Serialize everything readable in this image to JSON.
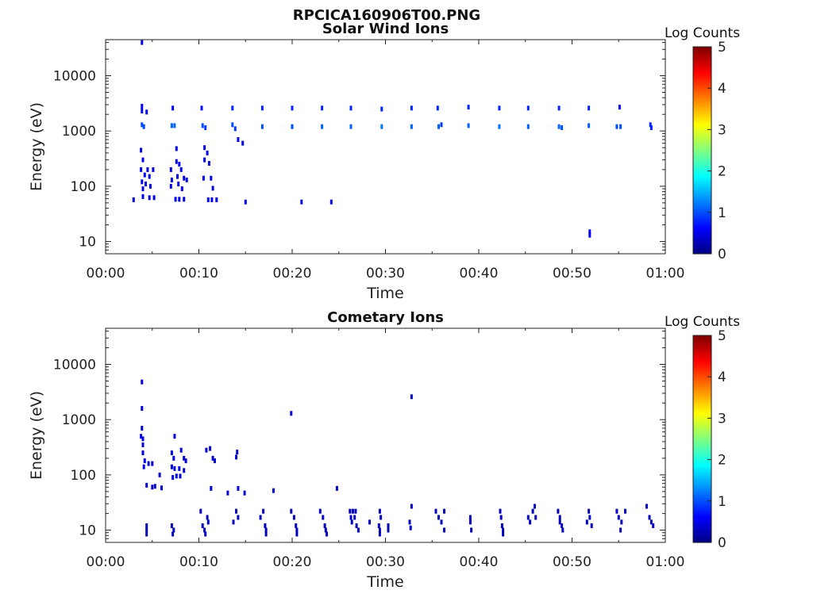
{
  "figure_title": "RPCICA160906T00.PNG",
  "chart_data": [
    {
      "type": "heatmap",
      "title": "Solar Wind Ions",
      "xlabel": "Time",
      "ylabel": "Energy (eV)",
      "x_ticks": [
        "00:00",
        "00:10",
        "00:20",
        "00:30",
        "00:40",
        "00:50",
        "01:00"
      ],
      "xlim_minutes": [
        0,
        60
      ],
      "y_ticks": [
        "10",
        "100",
        "1000",
        "10000"
      ],
      "y_scale": "log",
      "ylim": [
        6,
        45000
      ],
      "colorbar": {
        "label": "Log Counts",
        "min": 0,
        "max": 5,
        "ticks": [
          "0",
          "1",
          "2",
          "3",
          "4",
          "5"
        ]
      },
      "points": [
        {
          "t": 3.9,
          "e": 40000,
          "v": 0.5
        },
        {
          "t": 3.9,
          "e": 2800,
          "v": 0.6
        },
        {
          "t": 3.9,
          "e": 2300,
          "v": 0.6
        },
        {
          "t": 3.9,
          "e": 1300,
          "v": 1.0
        },
        {
          "t": 4.1,
          "e": 1200,
          "v": 1.0
        },
        {
          "t": 3.8,
          "e": 450,
          "v": 0.5
        },
        {
          "t": 4.0,
          "e": 300,
          "v": 0.6
        },
        {
          "t": 3.8,
          "e": 200,
          "v": 0.6
        },
        {
          "t": 4.2,
          "e": 160,
          "v": 0.6
        },
        {
          "t": 3.9,
          "e": 120,
          "v": 0.6
        },
        {
          "t": 4.3,
          "e": 110,
          "v": 0.5
        },
        {
          "t": 4.0,
          "e": 90,
          "v": 0.6
        },
        {
          "t": 4.5,
          "e": 200,
          "v": 0.5
        },
        {
          "t": 4.7,
          "e": 150,
          "v": 0.5
        },
        {
          "t": 4.8,
          "e": 100,
          "v": 0.5
        },
        {
          "t": 4.4,
          "e": 2200,
          "v": 0.5
        },
        {
          "t": 4.0,
          "e": 65,
          "v": 0.5
        },
        {
          "t": 4.7,
          "e": 62,
          "v": 0.5
        },
        {
          "t": 5.1,
          "e": 200,
          "v": 0.5
        },
        {
          "t": 5.2,
          "e": 62,
          "v": 0.5
        },
        {
          "t": 3.0,
          "e": 57,
          "v": 0.5
        },
        {
          "t": 7.1,
          "e": 1250,
          "v": 1.1
        },
        {
          "t": 7.4,
          "e": 1250,
          "v": 1.1
        },
        {
          "t": 7.2,
          "e": 2600,
          "v": 0.6
        },
        {
          "t": 7.0,
          "e": 200,
          "v": 0.5
        },
        {
          "t": 7.1,
          "e": 130,
          "v": 0.5
        },
        {
          "t": 7.0,
          "e": 100,
          "v": 0.5
        },
        {
          "t": 7.6,
          "e": 480,
          "v": 0.5
        },
        {
          "t": 7.9,
          "e": 250,
          "v": 0.6
        },
        {
          "t": 8.1,
          "e": 200,
          "v": 0.6
        },
        {
          "t": 7.7,
          "e": 150,
          "v": 0.5
        },
        {
          "t": 8.4,
          "e": 140,
          "v": 0.5
        },
        {
          "t": 8.7,
          "e": 130,
          "v": 0.5
        },
        {
          "t": 7.6,
          "e": 280,
          "v": 0.5
        },
        {
          "t": 7.5,
          "e": 58,
          "v": 0.5
        },
        {
          "t": 7.9,
          "e": 58,
          "v": 0.5
        },
        {
          "t": 8.4,
          "e": 58,
          "v": 0.5
        },
        {
          "t": 7.8,
          "e": 110,
          "v": 0.5
        },
        {
          "t": 8.2,
          "e": 90,
          "v": 0.5
        },
        {
          "t": 10.3,
          "e": 2600,
          "v": 0.7
        },
        {
          "t": 10.4,
          "e": 1250,
          "v": 1.0
        },
        {
          "t": 10.7,
          "e": 1150,
          "v": 0.9
        },
        {
          "t": 10.6,
          "e": 500,
          "v": 0.5
        },
        {
          "t": 10.9,
          "e": 400,
          "v": 0.5
        },
        {
          "t": 10.6,
          "e": 300,
          "v": 0.5
        },
        {
          "t": 11.1,
          "e": 260,
          "v": 0.5
        },
        {
          "t": 10.5,
          "e": 140,
          "v": 0.5
        },
        {
          "t": 11.3,
          "e": 140,
          "v": 0.5
        },
        {
          "t": 11.5,
          "e": 92,
          "v": 0.5
        },
        {
          "t": 11.0,
          "e": 57,
          "v": 0.5
        },
        {
          "t": 11.4,
          "e": 57,
          "v": 0.5
        },
        {
          "t": 11.9,
          "e": 57,
          "v": 0.5
        },
        {
          "t": 13.6,
          "e": 2600,
          "v": 0.8
        },
        {
          "t": 13.6,
          "e": 1300,
          "v": 1.0
        },
        {
          "t": 13.9,
          "e": 1100,
          "v": 0.9
        },
        {
          "t": 14.2,
          "e": 700,
          "v": 0.5
        },
        {
          "t": 14.7,
          "e": 600,
          "v": 0.5
        },
        {
          "t": 15.0,
          "e": 52,
          "v": 0.5
        },
        {
          "t": 16.8,
          "e": 2600,
          "v": 0.8
        },
        {
          "t": 16.8,
          "e": 1200,
          "v": 1.0
        },
        {
          "t": 20.0,
          "e": 2600,
          "v": 0.8
        },
        {
          "t": 20.0,
          "e": 1200,
          "v": 1.0
        },
        {
          "t": 21.0,
          "e": 52,
          "v": 0.5
        },
        {
          "t": 24.2,
          "e": 52,
          "v": 0.5
        },
        {
          "t": 23.2,
          "e": 2600,
          "v": 0.8
        },
        {
          "t": 23.2,
          "e": 1200,
          "v": 1.1
        },
        {
          "t": 26.3,
          "e": 2600,
          "v": 0.8
        },
        {
          "t": 26.3,
          "e": 1200,
          "v": 1.1
        },
        {
          "t": 29.6,
          "e": 2500,
          "v": 0.8
        },
        {
          "t": 29.6,
          "e": 1200,
          "v": 1.2
        },
        {
          "t": 32.8,
          "e": 2600,
          "v": 0.8
        },
        {
          "t": 32.8,
          "e": 1200,
          "v": 1.1
        },
        {
          "t": 35.6,
          "e": 2600,
          "v": 0.8
        },
        {
          "t": 35.7,
          "e": 1200,
          "v": 1.1
        },
        {
          "t": 36.0,
          "e": 1300,
          "v": 0.9
        },
        {
          "t": 38.9,
          "e": 2700,
          "v": 0.8
        },
        {
          "t": 38.9,
          "e": 1250,
          "v": 1.1
        },
        {
          "t": 42.2,
          "e": 2600,
          "v": 0.8
        },
        {
          "t": 42.2,
          "e": 1200,
          "v": 1.2
        },
        {
          "t": 45.3,
          "e": 2600,
          "v": 0.8
        },
        {
          "t": 45.3,
          "e": 1200,
          "v": 1.1
        },
        {
          "t": 48.6,
          "e": 2600,
          "v": 0.8
        },
        {
          "t": 48.6,
          "e": 1200,
          "v": 1.1
        },
        {
          "t": 48.9,
          "e": 1150,
          "v": 1.0
        },
        {
          "t": 51.8,
          "e": 2600,
          "v": 0.8
        },
        {
          "t": 51.8,
          "e": 1250,
          "v": 1.1
        },
        {
          "t": 51.9,
          "e": 15,
          "v": 0.6
        },
        {
          "t": 51.9,
          "e": 13,
          "v": 0.6
        },
        {
          "t": 55.1,
          "e": 2700,
          "v": 0.6
        },
        {
          "t": 54.8,
          "e": 1200,
          "v": 1.0
        },
        {
          "t": 55.2,
          "e": 1200,
          "v": 1.0
        },
        {
          "t": 58.4,
          "e": 1300,
          "v": 0.8
        },
        {
          "t": 58.5,
          "e": 1150,
          "v": 0.8
        }
      ]
    },
    {
      "type": "heatmap",
      "title": "Cometary Ions",
      "xlabel": "Time",
      "ylabel": "Energy (eV)",
      "x_ticks": [
        "00:00",
        "00:10",
        "00:20",
        "00:30",
        "00:40",
        "00:50",
        "01:00"
      ],
      "xlim_minutes": [
        0,
        60
      ],
      "y_ticks": [
        "10",
        "100",
        "1000",
        "10000"
      ],
      "y_scale": "log",
      "ylim": [
        6,
        45000
      ],
      "colorbar": {
        "label": "Log Counts",
        "min": 0,
        "max": 5,
        "ticks": [
          "0",
          "1",
          "2",
          "3",
          "4",
          "5"
        ]
      },
      "points": [
        {
          "t": 3.9,
          "e": 4800,
          "v": 0.4
        },
        {
          "t": 3.9,
          "e": 1600,
          "v": 0.4
        },
        {
          "t": 3.9,
          "e": 700,
          "v": 0.4
        },
        {
          "t": 3.8,
          "e": 500,
          "v": 0.5
        },
        {
          "t": 4.0,
          "e": 450,
          "v": 0.5
        },
        {
          "t": 4.0,
          "e": 350,
          "v": 0.4
        },
        {
          "t": 4.0,
          "e": 250,
          "v": 0.4
        },
        {
          "t": 4.2,
          "e": 180,
          "v": 0.5
        },
        {
          "t": 4.6,
          "e": 160,
          "v": 0.4
        },
        {
          "t": 5.0,
          "e": 160,
          "v": 0.4
        },
        {
          "t": 4.1,
          "e": 140,
          "v": 0.5
        },
        {
          "t": 4.4,
          "e": 65,
          "v": 0.4
        },
        {
          "t": 5.0,
          "e": 60,
          "v": 0.4
        },
        {
          "t": 5.3,
          "e": 62,
          "v": 0.4
        },
        {
          "t": 5.8,
          "e": 100,
          "v": 0.4
        },
        {
          "t": 6.0,
          "e": 58,
          "v": 0.4
        },
        {
          "t": 7.4,
          "e": 500,
          "v": 0.5
        },
        {
          "t": 7.1,
          "e": 250,
          "v": 0.5
        },
        {
          "t": 7.3,
          "e": 200,
          "v": 0.5
        },
        {
          "t": 8.1,
          "e": 280,
          "v": 0.5
        },
        {
          "t": 8.4,
          "e": 200,
          "v": 0.4
        },
        {
          "t": 8.6,
          "e": 180,
          "v": 0.4
        },
        {
          "t": 7.1,
          "e": 140,
          "v": 0.5
        },
        {
          "t": 7.4,
          "e": 130,
          "v": 0.5
        },
        {
          "t": 7.9,
          "e": 130,
          "v": 0.5
        },
        {
          "t": 8.4,
          "e": 120,
          "v": 0.4
        },
        {
          "t": 7.2,
          "e": 90,
          "v": 0.5
        },
        {
          "t": 7.6,
          "e": 95,
          "v": 0.5
        },
        {
          "t": 8.0,
          "e": 95,
          "v": 0.4
        },
        {
          "t": 10.8,
          "e": 280,
          "v": 0.4
        },
        {
          "t": 11.2,
          "e": 300,
          "v": 0.4
        },
        {
          "t": 11.5,
          "e": 200,
          "v": 0.4
        },
        {
          "t": 11.7,
          "e": 180,
          "v": 0.4
        },
        {
          "t": 11.3,
          "e": 57,
          "v": 0.4
        },
        {
          "t": 14.1,
          "e": 260,
          "v": 0.4
        },
        {
          "t": 14.0,
          "e": 210,
          "v": 0.4
        },
        {
          "t": 13.1,
          "e": 47,
          "v": 0.4
        },
        {
          "t": 14.2,
          "e": 57,
          "v": 0.4
        },
        {
          "t": 14.9,
          "e": 47,
          "v": 0.4
        },
        {
          "t": 18.0,
          "e": 52,
          "v": 0.4
        },
        {
          "t": 19.9,
          "e": 1300,
          "v": 0.4
        },
        {
          "t": 24.8,
          "e": 57,
          "v": 0.4
        },
        {
          "t": 32.8,
          "e": 2600,
          "v": 0.4
        },
        {
          "t": 4.4,
          "e": 12,
          "v": 0.3
        },
        {
          "t": 4.4,
          "e": 10,
          "v": 0.3
        },
        {
          "t": 4.4,
          "e": 8.5,
          "v": 0.3
        },
        {
          "t": 7.1,
          "e": 12,
          "v": 0.3
        },
        {
          "t": 7.3,
          "e": 10,
          "v": 0.3
        },
        {
          "t": 7.2,
          "e": 8.5,
          "v": 0.3
        },
        {
          "t": 10.2,
          "e": 22,
          "v": 0.3
        },
        {
          "t": 10.4,
          "e": 12,
          "v": 0.3
        },
        {
          "t": 10.6,
          "e": 10,
          "v": 0.3
        },
        {
          "t": 10.7,
          "e": 8.5,
          "v": 0.3
        },
        {
          "t": 10.9,
          "e": 17,
          "v": 0.3
        },
        {
          "t": 11.0,
          "e": 14,
          "v": 0.3
        },
        {
          "t": 13.7,
          "e": 14,
          "v": 0.3
        },
        {
          "t": 14.0,
          "e": 22,
          "v": 0.3
        },
        {
          "t": 14.2,
          "e": 17,
          "v": 0.3
        },
        {
          "t": 16.6,
          "e": 17,
          "v": 0.3
        },
        {
          "t": 16.9,
          "e": 22,
          "v": 0.3
        },
        {
          "t": 17.1,
          "e": 12,
          "v": 0.3
        },
        {
          "t": 17.2,
          "e": 10,
          "v": 0.3
        },
        {
          "t": 17.2,
          "e": 8.5,
          "v": 0.3
        },
        {
          "t": 19.9,
          "e": 22,
          "v": 0.3
        },
        {
          "t": 20.2,
          "e": 17,
          "v": 0.3
        },
        {
          "t": 20.4,
          "e": 12,
          "v": 0.3
        },
        {
          "t": 20.5,
          "e": 10,
          "v": 0.3
        },
        {
          "t": 20.5,
          "e": 8.5,
          "v": 0.3
        },
        {
          "t": 23.0,
          "e": 22,
          "v": 0.3
        },
        {
          "t": 23.3,
          "e": 17,
          "v": 0.3
        },
        {
          "t": 23.5,
          "e": 12,
          "v": 0.3
        },
        {
          "t": 23.6,
          "e": 10,
          "v": 0.3
        },
        {
          "t": 23.7,
          "e": 8.5,
          "v": 0.3
        },
        {
          "t": 26.2,
          "e": 22,
          "v": 0.3
        },
        {
          "t": 26.5,
          "e": 22,
          "v": 0.3
        },
        {
          "t": 26.8,
          "e": 22,
          "v": 0.3
        },
        {
          "t": 26.3,
          "e": 17,
          "v": 0.3
        },
        {
          "t": 26.7,
          "e": 17,
          "v": 0.3
        },
        {
          "t": 26.4,
          "e": 14,
          "v": 0.3
        },
        {
          "t": 26.9,
          "e": 12,
          "v": 0.3
        },
        {
          "t": 27.1,
          "e": 10,
          "v": 0.3
        },
        {
          "t": 28.3,
          "e": 14,
          "v": 0.3
        },
        {
          "t": 29.4,
          "e": 22,
          "v": 0.3
        },
        {
          "t": 29.5,
          "e": 17,
          "v": 0.3
        },
        {
          "t": 29.3,
          "e": 12,
          "v": 0.3
        },
        {
          "t": 29.4,
          "e": 10,
          "v": 0.3
        },
        {
          "t": 29.4,
          "e": 8.5,
          "v": 0.3
        },
        {
          "t": 30.3,
          "e": 12,
          "v": 0.3
        },
        {
          "t": 30.3,
          "e": 10,
          "v": 0.3
        },
        {
          "t": 32.6,
          "e": 14,
          "v": 0.3
        },
        {
          "t": 32.8,
          "e": 27,
          "v": 0.3
        },
        {
          "t": 32.7,
          "e": 11,
          "v": 0.3
        },
        {
          "t": 35.4,
          "e": 22,
          "v": 0.3
        },
        {
          "t": 35.7,
          "e": 17,
          "v": 0.3
        },
        {
          "t": 36.0,
          "e": 14,
          "v": 0.3
        },
        {
          "t": 36.3,
          "e": 22,
          "v": 0.3
        },
        {
          "t": 36.3,
          "e": 10,
          "v": 0.3
        },
        {
          "t": 39.1,
          "e": 17,
          "v": 0.3
        },
        {
          "t": 39.1,
          "e": 14,
          "v": 0.3
        },
        {
          "t": 39.2,
          "e": 10,
          "v": 0.3
        },
        {
          "t": 42.3,
          "e": 22,
          "v": 0.3
        },
        {
          "t": 42.4,
          "e": 17,
          "v": 0.3
        },
        {
          "t": 42.5,
          "e": 12,
          "v": 0.3
        },
        {
          "t": 42.6,
          "e": 10,
          "v": 0.3
        },
        {
          "t": 42.6,
          "e": 8.5,
          "v": 0.3
        },
        {
          "t": 45.3,
          "e": 17,
          "v": 0.3
        },
        {
          "t": 45.5,
          "e": 14,
          "v": 0.3
        },
        {
          "t": 45.8,
          "e": 22,
          "v": 0.3
        },
        {
          "t": 46.0,
          "e": 27,
          "v": 0.3
        },
        {
          "t": 46.1,
          "e": 17,
          "v": 0.3
        },
        {
          "t": 48.5,
          "e": 22,
          "v": 0.3
        },
        {
          "t": 48.7,
          "e": 17,
          "v": 0.3
        },
        {
          "t": 48.9,
          "e": 12,
          "v": 0.3
        },
        {
          "t": 49.0,
          "e": 10,
          "v": 0.3
        },
        {
          "t": 48.7,
          "e": 14,
          "v": 0.3
        },
        {
          "t": 51.8,
          "e": 22,
          "v": 0.3
        },
        {
          "t": 51.9,
          "e": 17,
          "v": 0.3
        },
        {
          "t": 51.6,
          "e": 14,
          "v": 0.3
        },
        {
          "t": 52.1,
          "e": 12,
          "v": 0.3
        },
        {
          "t": 54.8,
          "e": 22,
          "v": 0.3
        },
        {
          "t": 55.0,
          "e": 17,
          "v": 0.3
        },
        {
          "t": 55.3,
          "e": 14,
          "v": 0.3
        },
        {
          "t": 55.2,
          "e": 10,
          "v": 0.3
        },
        {
          "t": 55.7,
          "e": 22,
          "v": 0.3
        },
        {
          "t": 58.0,
          "e": 27,
          "v": 0.3
        },
        {
          "t": 58.3,
          "e": 17,
          "v": 0.3
        },
        {
          "t": 58.5,
          "e": 14,
          "v": 0.3
        },
        {
          "t": 58.7,
          "e": 12,
          "v": 0.3
        }
      ]
    }
  ]
}
